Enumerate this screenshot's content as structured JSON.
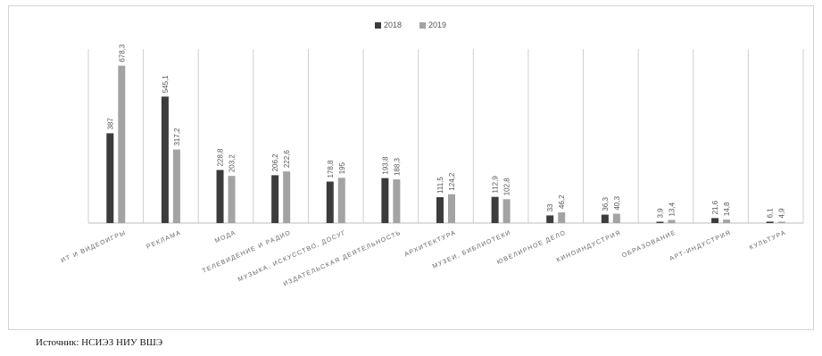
{
  "source_text": "Источник: НСИЭЗ НИУ ВШЭ",
  "colors": {
    "series_2018": "#3c3c3c",
    "series_2019": "#a3a3a3",
    "gridline": "#cfcfcf",
    "baseline": "#bdbdbd"
  },
  "chart_data": {
    "type": "bar",
    "title": "",
    "xlabel": "",
    "ylabel": "",
    "legend_position": "top-center",
    "grid": false,
    "categories": [
      "ИТ И ВИДЕОИГРЫ",
      "РЕКЛАМА",
      "МОДА",
      "ТЕЛЕВИДЕНИЕ И РАДИО",
      "МУЗЫКА, ИСКУССТВО, ДОСУГ",
      "ИЗДАТЕЛЬСКАЯ ДЕЯТЕЛЬНОСТЬ",
      "АРХИТЕКТУРА",
      "МУЗЕИ, БИБЛИОТЕКИ",
      "ЮВЕЛИРНОЕ ДЕЛО",
      "КИНОИНДУСТРИЯ",
      "ОБРАЗОВАНИЕ",
      "АРТ-ИНДУСТРИЯ",
      "КУЛЬТУРА"
    ],
    "series": [
      {
        "name": "2018",
        "values": [
          387,
          545.1,
          228.8,
          206.2,
          178.8,
          193.8,
          111.5,
          112.9,
          33,
          36.3,
          3.9,
          21.6,
          6.1
        ],
        "labels": [
          "387",
          "545,1",
          "228,8",
          "206,2",
          "178,8",
          "193,8",
          "111,5",
          "112,9",
          "33",
          "36,3",
          "3,9",
          "21,6",
          "6,1"
        ]
      },
      {
        "name": "2019",
        "values": [
          678.3,
          317.2,
          203.2,
          222.6,
          195,
          188.3,
          124.2,
          102.8,
          46.2,
          40.3,
          13.4,
          14.8,
          4.9
        ],
        "labels": [
          "678,3",
          "317,2",
          "203,2",
          "222,6",
          "195",
          "188,3",
          "124,2",
          "102,8",
          "46,2",
          "40,3",
          "13,4",
          "14,8",
          "4,9"
        ]
      }
    ]
  }
}
